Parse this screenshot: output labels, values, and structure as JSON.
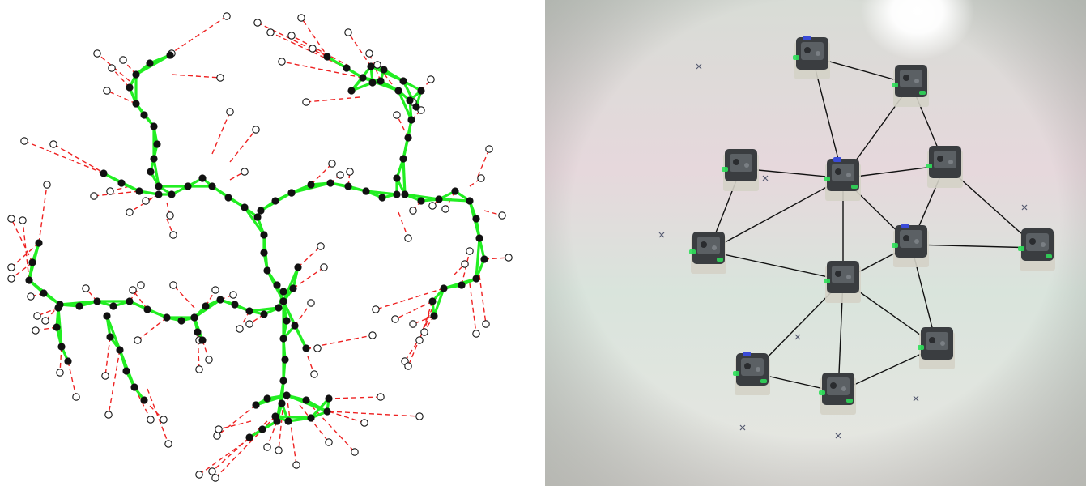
{
  "left_panel": {
    "description_none": "",
    "colors": {
      "robot_fill": "#111111",
      "mesh_edge": "#22ee22",
      "target_line": "#ee2222",
      "target_ring": "#111111",
      "background": "#ffffff"
    }
  },
  "right_panel": {
    "colors": {
      "floor_light": "#e8e6e2",
      "floor_tint_pink": "#e6d8dc",
      "floor_tint_green": "#d9e4dc",
      "glare": "#ffffff",
      "link": "#111111",
      "robot_body": "#3a3d40",
      "robot_base": "#d4d1c6",
      "led_green": "#2fe05a",
      "led_blue": "#3a4bd8",
      "marker": "#555a70"
    }
  }
}
